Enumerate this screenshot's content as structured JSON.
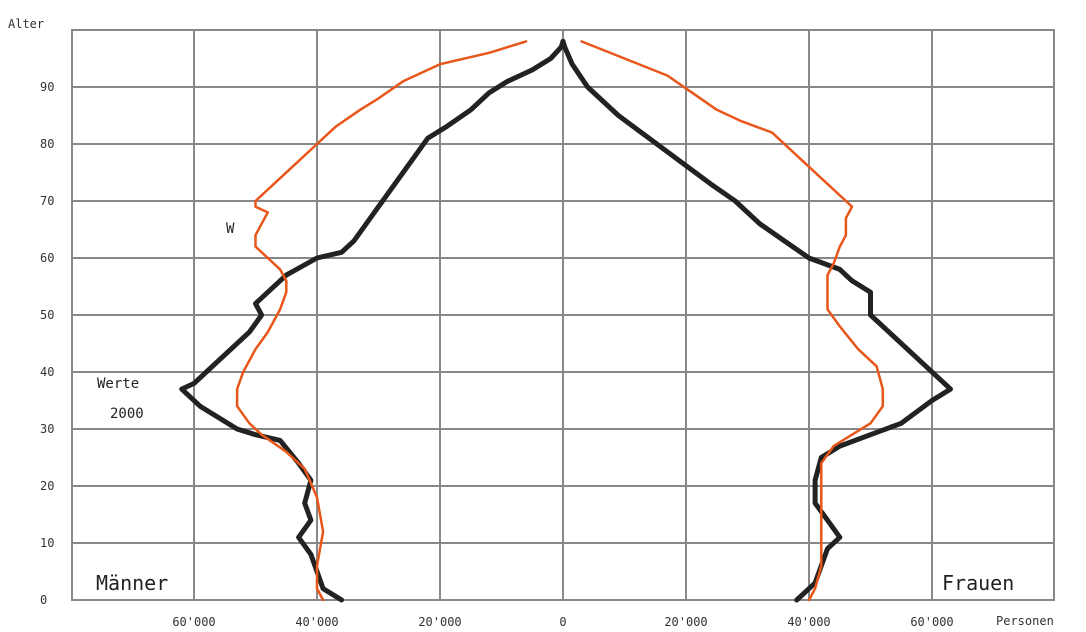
{
  "chart_data": {
    "type": "line",
    "title": "",
    "ylabel": "Alter",
    "xlabel": "Personen",
    "xlim": [
      -70000,
      70000
    ],
    "ylim": [
      0,
      100
    ],
    "grid": true,
    "x_tick_labels": [
      "60'000",
      "40'000",
      "20'000",
      "0",
      "20'000",
      "40'000",
      "60'000"
    ],
    "x_tick_values": [
      -60000,
      -40000,
      -20000,
      0,
      20000,
      40000,
      60000
    ],
    "y_ticks": [
      0,
      10,
      20,
      30,
      40,
      50,
      60,
      70,
      80,
      90
    ],
    "labels": {
      "left_side": "Männer",
      "right_side": "Frauen",
      "series_w": "W",
      "series_values_line1": "Werte",
      "series_values_line2": "2000"
    },
    "colors": {
      "values_2000": "#222222",
      "w": "#e8561a",
      "grid": "#888888"
    },
    "series": [
      {
        "name": "Werte 2000",
        "color": "#222222",
        "side": "Männer",
        "points": [
          [
            0,
            98
          ],
          [
            -300,
            97
          ],
          [
            -2000,
            95
          ],
          [
            -5000,
            93
          ],
          [
            -9000,
            91
          ],
          [
            -12000,
            89
          ],
          [
            -15000,
            86
          ],
          [
            -19000,
            83
          ],
          [
            -22000,
            81
          ],
          [
            -24000,
            78
          ],
          [
            -26000,
            75
          ],
          [
            -28000,
            72
          ],
          [
            -30000,
            69
          ],
          [
            -32000,
            66
          ],
          [
            -34000,
            63
          ],
          [
            -36000,
            61
          ],
          [
            -40000,
            60
          ],
          [
            -45000,
            57
          ],
          [
            -48000,
            54
          ],
          [
            -50000,
            52
          ],
          [
            -49000,
            50
          ],
          [
            -51000,
            47
          ],
          [
            -54000,
            44
          ],
          [
            -58000,
            40
          ],
          [
            -60000,
            38
          ],
          [
            -62000,
            37
          ],
          [
            -59000,
            34
          ],
          [
            -56000,
            32
          ],
          [
            -53000,
            30
          ],
          [
            -50000,
            29
          ],
          [
            -46000,
            28
          ],
          [
            -43000,
            24
          ],
          [
            -41000,
            21
          ],
          [
            -42000,
            17
          ],
          [
            -41000,
            14
          ],
          [
            -43000,
            11
          ],
          [
            -41000,
            8
          ],
          [
            -40000,
            5
          ],
          [
            -39000,
            2
          ],
          [
            -36000,
            0
          ]
        ]
      },
      {
        "name": "Werte 2000",
        "color": "#222222",
        "side": "Frauen",
        "points": [
          [
            0,
            98
          ],
          [
            300,
            97
          ],
          [
            1500,
            94
          ],
          [
            4000,
            90
          ],
          [
            9000,
            85
          ],
          [
            14000,
            81
          ],
          [
            19000,
            77
          ],
          [
            24000,
            73
          ],
          [
            28000,
            70
          ],
          [
            32000,
            66
          ],
          [
            36000,
            63
          ],
          [
            40000,
            60
          ],
          [
            45000,
            58
          ],
          [
            47000,
            56
          ],
          [
            50000,
            54
          ],
          [
            50000,
            50
          ],
          [
            53000,
            47
          ],
          [
            58000,
            42
          ],
          [
            63000,
            37
          ],
          [
            60000,
            35
          ],
          [
            55000,
            31
          ],
          [
            50000,
            29
          ],
          [
            45000,
            27
          ],
          [
            42000,
            25
          ],
          [
            41000,
            21
          ],
          [
            41000,
            17
          ],
          [
            43000,
            14
          ],
          [
            45000,
            11
          ],
          [
            43000,
            9
          ],
          [
            42000,
            6
          ],
          [
            41000,
            3
          ],
          [
            39000,
            1
          ],
          [
            38000,
            0
          ]
        ]
      },
      {
        "name": "W",
        "color": "#e8561a",
        "side": "Männer",
        "points": [
          [
            -6000,
            98
          ],
          [
            -12000,
            96
          ],
          [
            -20000,
            94
          ],
          [
            -26000,
            91
          ],
          [
            -30000,
            88
          ],
          [
            -33000,
            86
          ],
          [
            -37000,
            83
          ],
          [
            -40000,
            80
          ],
          [
            -43000,
            77
          ],
          [
            -46000,
            74
          ],
          [
            -50000,
            70
          ],
          [
            -50000,
            69
          ],
          [
            -48000,
            68
          ],
          [
            -49000,
            66
          ],
          [
            -50000,
            64
          ],
          [
            -50000,
            62
          ],
          [
            -48000,
            60
          ],
          [
            -46000,
            58
          ],
          [
            -45000,
            56
          ],
          [
            -45000,
            54
          ],
          [
            -46000,
            51
          ],
          [
            -48000,
            47
          ],
          [
            -50000,
            44
          ],
          [
            -52000,
            40
          ],
          [
            -53000,
            37
          ],
          [
            -53000,
            34
          ],
          [
            -51000,
            31
          ],
          [
            -49000,
            29
          ],
          [
            -45000,
            26
          ],
          [
            -42000,
            23
          ],
          [
            -40000,
            18
          ],
          [
            -39000,
            12
          ],
          [
            -40000,
            6
          ],
          [
            -40000,
            2
          ],
          [
            -39000,
            0
          ]
        ]
      },
      {
        "name": "W",
        "color": "#e8561a",
        "side": "Frauen",
        "points": [
          [
            3000,
            98
          ],
          [
            10000,
            95
          ],
          [
            17000,
            92
          ],
          [
            21000,
            89
          ],
          [
            25000,
            86
          ],
          [
            29000,
            84
          ],
          [
            34000,
            82
          ],
          [
            37000,
            79
          ],
          [
            40000,
            76
          ],
          [
            43000,
            73
          ],
          [
            46000,
            70
          ],
          [
            47000,
            69
          ],
          [
            46000,
            67
          ],
          [
            46000,
            64
          ],
          [
            45000,
            62
          ],
          [
            44000,
            59
          ],
          [
            43000,
            57
          ],
          [
            43000,
            54
          ],
          [
            43000,
            51
          ],
          [
            45000,
            48
          ],
          [
            48000,
            44
          ],
          [
            51000,
            41
          ],
          [
            52000,
            37
          ],
          [
            52000,
            34
          ],
          [
            50000,
            31
          ],
          [
            47000,
            29
          ],
          [
            44000,
            27
          ],
          [
            42000,
            24
          ],
          [
            42000,
            18
          ],
          [
            42000,
            12
          ],
          [
            42000,
            6
          ],
          [
            41000,
            2
          ],
          [
            40000,
            0
          ]
        ]
      }
    ]
  }
}
